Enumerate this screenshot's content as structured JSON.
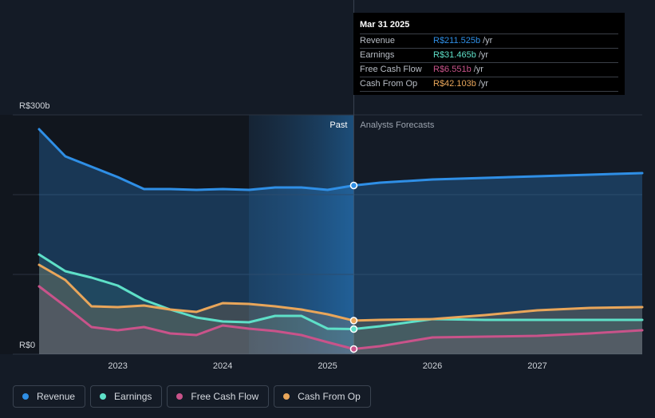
{
  "chart_data": {
    "type": "area",
    "currency_prefix": "R$",
    "y_unit": "b",
    "ylim": [
      0,
      300
    ],
    "y_ticks": [
      {
        "value": 300,
        "label": "R$300b"
      },
      {
        "value": 200,
        "label": ""
      },
      {
        "value": 100,
        "label": ""
      },
      {
        "value": 0,
        "label": "R$0"
      }
    ],
    "x_ticks": [
      {
        "value": 2023.0,
        "label": "2023"
      },
      {
        "value": 2024.0,
        "label": "2024"
      },
      {
        "value": 2025.0,
        "label": "2025"
      },
      {
        "value": 2026.0,
        "label": "2026"
      },
      {
        "value": 2027.0,
        "label": "2027"
      }
    ],
    "xlim": [
      2022.25,
      2028.0
    ],
    "highlight_start": 2024.25,
    "divider_x": 2025.25,
    "past_label": "Past",
    "forecast_label": "Analysts Forecasts",
    "series": [
      {
        "name": "Revenue",
        "color": "#2f8fe6",
        "area_opacity": 0.28,
        "marker_x": 2025.25,
        "marker_y": 211.525,
        "points": [
          [
            2022.25,
            282
          ],
          [
            2022.5,
            248
          ],
          [
            2022.75,
            235
          ],
          [
            2023.0,
            222
          ],
          [
            2023.25,
            207
          ],
          [
            2023.5,
            207
          ],
          [
            2023.75,
            206
          ],
          [
            2024.0,
            207
          ],
          [
            2024.25,
            206
          ],
          [
            2024.5,
            209
          ],
          [
            2024.75,
            209
          ],
          [
            2025.0,
            206
          ],
          [
            2025.25,
            211.5
          ],
          [
            2025.5,
            215
          ],
          [
            2026.0,
            219
          ],
          [
            2026.5,
            221
          ],
          [
            2027.0,
            223
          ],
          [
            2027.5,
            225
          ],
          [
            2028.0,
            227
          ]
        ]
      },
      {
        "name": "Earnings",
        "color": "#5ee0c8",
        "area_opacity": 0.1,
        "marker_x": 2025.25,
        "marker_y": 31.465,
        "points": [
          [
            2022.25,
            125
          ],
          [
            2022.5,
            104
          ],
          [
            2022.75,
            96
          ],
          [
            2023.0,
            86
          ],
          [
            2023.25,
            68
          ],
          [
            2023.5,
            56
          ],
          [
            2023.75,
            46
          ],
          [
            2024.0,
            41
          ],
          [
            2024.25,
            40
          ],
          [
            2024.5,
            48
          ],
          [
            2024.75,
            48
          ],
          [
            2025.0,
            32
          ],
          [
            2025.25,
            31.5
          ],
          [
            2025.5,
            35
          ],
          [
            2026.0,
            44
          ],
          [
            2026.5,
            43
          ],
          [
            2027.0,
            43
          ],
          [
            2027.5,
            43
          ],
          [
            2028.0,
            43
          ]
        ]
      },
      {
        "name": "Free Cash Flow",
        "color": "#c9538a",
        "area_opacity": 0.1,
        "marker_x": 2025.25,
        "marker_y": 6.551,
        "points": [
          [
            2022.25,
            85
          ],
          [
            2022.5,
            60
          ],
          [
            2022.75,
            34
          ],
          [
            2023.0,
            30
          ],
          [
            2023.25,
            34
          ],
          [
            2023.5,
            26
          ],
          [
            2023.75,
            24
          ],
          [
            2024.0,
            36
          ],
          [
            2024.25,
            32
          ],
          [
            2024.5,
            29
          ],
          [
            2024.75,
            24
          ],
          [
            2025.0,
            15
          ],
          [
            2025.25,
            6.5
          ],
          [
            2025.5,
            10
          ],
          [
            2026.0,
            21
          ],
          [
            2026.5,
            22
          ],
          [
            2027.0,
            23
          ],
          [
            2027.5,
            26
          ],
          [
            2028.0,
            30
          ]
        ]
      },
      {
        "name": "Cash From Op",
        "color": "#e9a65a",
        "area_opacity": 0.18,
        "marker_x": 2025.25,
        "marker_y": 42.103,
        "points": [
          [
            2022.25,
            112
          ],
          [
            2022.5,
            93
          ],
          [
            2022.75,
            60
          ],
          [
            2023.0,
            59
          ],
          [
            2023.25,
            61
          ],
          [
            2023.5,
            56
          ],
          [
            2023.75,
            53
          ],
          [
            2024.0,
            64
          ],
          [
            2024.25,
            63
          ],
          [
            2024.5,
            60
          ],
          [
            2024.75,
            56
          ],
          [
            2025.0,
            50
          ],
          [
            2025.25,
            42.1
          ],
          [
            2025.5,
            43
          ],
          [
            2026.0,
            44
          ],
          [
            2026.5,
            49
          ],
          [
            2027.0,
            55
          ],
          [
            2027.5,
            58
          ],
          [
            2028.0,
            59
          ]
        ]
      }
    ]
  },
  "tooltip": {
    "date": "Mar 31 2025",
    "rows": [
      {
        "label": "Revenue",
        "value": "R$211.525b",
        "unit": "/yr",
        "color": "#2f8fe6"
      },
      {
        "label": "Earnings",
        "value": "R$31.465b",
        "unit": "/yr",
        "color": "#5ee0c8"
      },
      {
        "label": "Free Cash Flow",
        "value": "R$6.551b",
        "unit": "/yr",
        "color": "#c9538a"
      },
      {
        "label": "Cash From Op",
        "value": "R$42.103b",
        "unit": "/yr",
        "color": "#e9a65a"
      }
    ]
  },
  "legend": [
    {
      "label": "Revenue",
      "color": "#2f8fe6"
    },
    {
      "label": "Earnings",
      "color": "#5ee0c8"
    },
    {
      "label": "Free Cash Flow",
      "color": "#c9538a"
    },
    {
      "label": "Cash From Op",
      "color": "#e9a65a"
    }
  ]
}
